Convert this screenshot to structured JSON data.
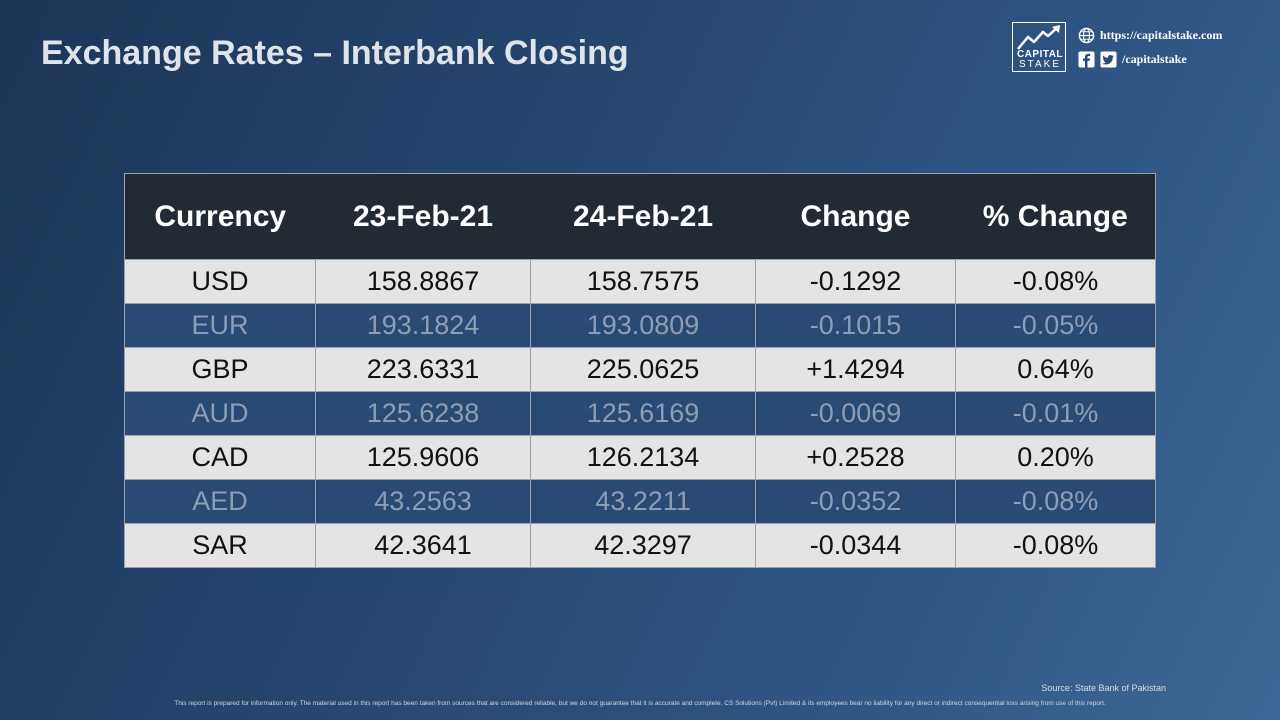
{
  "title": "Exchange Rates – Interbank Closing",
  "branding": {
    "logo_line1": "CAPITAL",
    "logo_line2": "STAKE",
    "website": "https://capitalstake.com",
    "social_handle": "/capitalstake",
    "icons": [
      "globe-icon",
      "facebook-icon",
      "twitter-icon",
      "logo-chart-icon"
    ]
  },
  "table": {
    "headers": [
      "Currency",
      "23-Feb-21",
      "24-Feb-21",
      "Change",
      "% Change"
    ],
    "rows": [
      {
        "currency": "USD",
        "prev": "158.8867",
        "curr": "158.7575",
        "change": "-0.1292",
        "pct": "-0.08%"
      },
      {
        "currency": "EUR",
        "prev": "193.1824",
        "curr": "193.0809",
        "change": "-0.1015",
        "pct": "-0.05%"
      },
      {
        "currency": "GBP",
        "prev": "223.6331",
        "curr": "225.0625",
        "change": "+1.4294",
        "pct": "0.64%"
      },
      {
        "currency": "AUD",
        "prev": "125.6238",
        "curr": "125.6169",
        "change": "-0.0069",
        "pct": "-0.01%"
      },
      {
        "currency": "CAD",
        "prev": "125.9606",
        "curr": "126.2134",
        "change": "+0.2528",
        "pct": "0.20%"
      },
      {
        "currency": "AED",
        "prev": "43.2563",
        "curr": "43.2211",
        "change": "-0.0352",
        "pct": "-0.08%"
      },
      {
        "currency": "SAR",
        "prev": "42.3641",
        "curr": "42.3297",
        "change": "-0.0344",
        "pct": "-0.08%"
      }
    ]
  },
  "source": "Source: State Bank of Pakistan",
  "disclaimer": "This report is prepared for information only. The material used in this report has been taken from sources that are considered  reliable,  but we do not  guarantee that it is accurate and complete. CS Solutions  (Pvt) Limited & its employees bear no liability for any direct or indirect consequential   loss arising from use of this report.",
  "colors": {
    "header_bg": "#222a33",
    "row_light": "#e4e4e4",
    "row_dark": "#2a4a76",
    "title_text": "#dfe4ea"
  }
}
